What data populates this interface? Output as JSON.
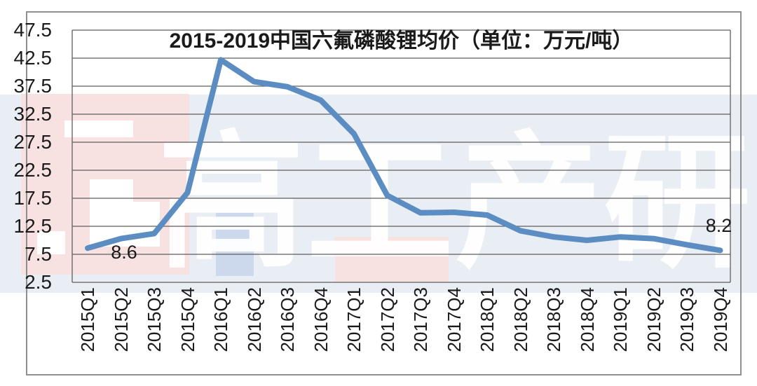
{
  "window": {
    "frame_color": "#8f8f8f",
    "background_color": "#ffffff"
  },
  "chart_data": {
    "type": "line",
    "title": "2015-2019中国六氟磷酸锂均价（单位：万元/吨）",
    "unit": "万元/吨",
    "categories": [
      "2015Q1",
      "2015Q2",
      "2015Q3",
      "2015Q4",
      "2016Q1",
      "2016Q2",
      "2016Q3",
      "2016Q4",
      "2017Q1",
      "2017Q2",
      "2017Q3",
      "2017Q4",
      "2018Q1",
      "2018Q2",
      "2018Q3",
      "2018Q4",
      "2019Q1",
      "2019Q2",
      "2019Q3",
      "2019Q4"
    ],
    "values": [
      8.6,
      10.3,
      11.2,
      18.5,
      42.2,
      38.3,
      37.4,
      35.0,
      29.0,
      18.0,
      14.9,
      15.0,
      14.5,
      11.7,
      10.6,
      10.0,
      10.6,
      10.3,
      9.2,
      8.2
    ],
    "y_ticks": [
      47.5,
      42.5,
      37.5,
      32.5,
      27.5,
      22.5,
      17.5,
      12.5,
      7.5,
      2.5
    ],
    "ylim": [
      2.5,
      47.5
    ],
    "grid": true,
    "legend": "none",
    "series_color": "#5b8dc3",
    "gridline_color": "#5e5e5e",
    "text_color": "#1a1a1a",
    "point_labels": [
      {
        "index": 0,
        "text": "8.6",
        "placement": "below-right"
      },
      {
        "index": 19,
        "text": "8.2",
        "placement": "above"
      }
    ]
  },
  "watermark": {
    "text": "高工产研",
    "band_color": "#e9edf4",
    "logo_color": "#f8e2e1",
    "accent_color": "#ccd8eb",
    "glyph_color": "#ffffff"
  }
}
